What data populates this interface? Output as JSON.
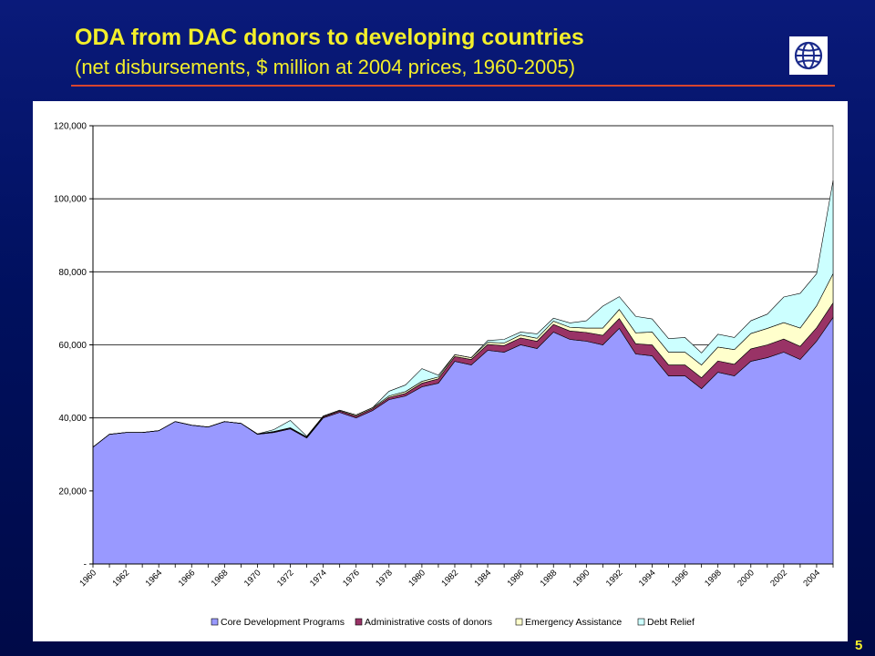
{
  "slide": {
    "title": "ODA from DAC donors to developing countries",
    "subtitle": "(net disbursements, $ million at 2004 prices, 1960-2005)",
    "page_number": "5",
    "logo_icon": "globe-icon",
    "title_color": "#f3ef2b",
    "rule_color": "#d8452f"
  },
  "chart_data": {
    "type": "area",
    "stacked": true,
    "title": "ODA from DAC donors to developing countries",
    "subtitle": "(net disbursements, $ million at 2004 prices, 1960-2005)",
    "xlabel": "",
    "ylabel": "",
    "x": [
      1960,
      1961,
      1962,
      1963,
      1964,
      1965,
      1966,
      1967,
      1968,
      1969,
      1970,
      1971,
      1972,
      1973,
      1974,
      1975,
      1976,
      1977,
      1978,
      1979,
      1980,
      1981,
      1982,
      1983,
      1984,
      1985,
      1986,
      1987,
      1988,
      1989,
      1990,
      1991,
      1992,
      1993,
      1994,
      1995,
      1996,
      1997,
      1998,
      1999,
      2000,
      2001,
      2002,
      2003,
      2004,
      2005
    ],
    "x_tick_labels": [
      "1960",
      "1962",
      "1964",
      "1966",
      "1968",
      "1970",
      "1972",
      "1974",
      "1976",
      "1978",
      "1980",
      "1982",
      "1984",
      "1986",
      "1988",
      "1990",
      "1992",
      "1994",
      "1996",
      "1998",
      "2000",
      "2002",
      "2004"
    ],
    "y_tick_labels": [
      "-",
      "20,000",
      "40,000",
      "60,000",
      "80,000",
      "100,000",
      "120,000"
    ],
    "ylim": [
      0,
      120000
    ],
    "grid": "horizontal",
    "legend_position": "bottom",
    "series": [
      {
        "name": "Core Development Programs",
        "color": "#9999ff",
        "values": [
          32000,
          35500,
          36000,
          36000,
          36500,
          39000,
          38000,
          37500,
          39000,
          38500,
          35500,
          36000,
          37000,
          34500,
          40000,
          41500,
          40000,
          42000,
          45000,
          46000,
          48500,
          49500,
          55500,
          54500,
          58500,
          58000,
          60000,
          59000,
          63500,
          61500,
          61000,
          60000,
          64500,
          57500,
          57000,
          51500,
          51500,
          48000,
          52500,
          51500,
          55500,
          56500,
          58000,
          56000,
          61000,
          67500
        ]
      },
      {
        "name": "Administrative costs of donors",
        "color": "#993366",
        "values": [
          0,
          0,
          0,
          0,
          0,
          0,
          0,
          0,
          0,
          0,
          100,
          200,
          200,
          200,
          300,
          400,
          500,
          500,
          600,
          700,
          1000,
          1200,
          1300,
          1500,
          1600,
          1800,
          1900,
          2000,
          2100,
          2300,
          2400,
          2600,
          2700,
          2800,
          3000,
          3000,
          3000,
          3000,
          3100,
          3200,
          3400,
          3500,
          3600,
          3600,
          3700,
          4000
        ]
      },
      {
        "name": "Emergency Assistance",
        "color": "#ffffcc",
        "values": [
          0,
          0,
          0,
          0,
          0,
          0,
          0,
          0,
          0,
          0,
          0,
          100,
          100,
          100,
          200,
          200,
          300,
          300,
          400,
          500,
          500,
          500,
          500,
          500,
          600,
          700,
          800,
          800,
          900,
          1000,
          1200,
          2000,
          2500,
          3000,
          3500,
          3500,
          3500,
          3500,
          3800,
          4000,
          4200,
          4500,
          4500,
          5000,
          6000,
          8000
        ]
      },
      {
        "name": "Debt Relief",
        "color": "#ccffff",
        "values": [
          0,
          0,
          0,
          0,
          0,
          0,
          0,
          0,
          0,
          0,
          0,
          500,
          2000,
          200,
          0,
          0,
          0,
          0,
          1300,
          1800,
          3500,
          500,
          0,
          0,
          500,
          1000,
          800,
          1200,
          800,
          1200,
          2000,
          6000,
          3500,
          4500,
          3600,
          3700,
          4000,
          3300,
          3500,
          3300,
          3500,
          3900,
          7000,
          9500,
          8800,
          25500
        ]
      }
    ]
  }
}
